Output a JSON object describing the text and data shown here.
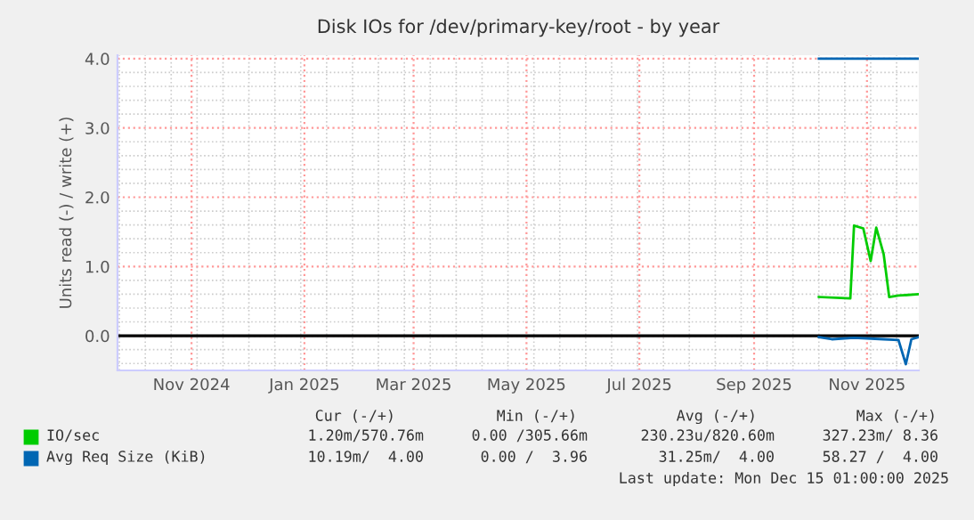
{
  "chart_data": {
    "type": "line",
    "title": "Disk IOs for /dev/primary-key/root - by year",
    "ylabel": "Units read (-) / write (+)",
    "xlim": [
      "2024-09-22",
      "2025-11-29"
    ],
    "xticks": [
      {
        "value": "2024-11-01",
        "label": "Nov 2024"
      },
      {
        "value": "2025-01-01",
        "label": "Jan 2025"
      },
      {
        "value": "2025-03-01",
        "label": "Mar 2025"
      },
      {
        "value": "2025-05-01",
        "label": "May 2025"
      },
      {
        "value": "2025-07-01",
        "label": "Jul 2025"
      },
      {
        "value": "2025-09-01",
        "label": "Sep 2025"
      },
      {
        "value": "2025-11-01",
        "label": "Nov 2025"
      }
    ],
    "ylim": [
      -0.5,
      4.05
    ],
    "yticks": [
      {
        "value": 0,
        "label": "0.0"
      },
      {
        "value": 1,
        "label": "1.0"
      },
      {
        "value": 2,
        "label": "2.0"
      },
      {
        "value": 3,
        "label": "3.0"
      },
      {
        "value": 4,
        "label": "4.0"
      }
    ],
    "grid": true,
    "legend": "bottom",
    "marker": "none",
    "line_style": "solid",
    "ref_lines": [
      {
        "axis": "y",
        "value": 0,
        "color": "#000000"
      }
    ],
    "series": [
      {
        "name": "IO/sec",
        "color": "#00cc00",
        "x": [
          "2025-10-06",
          "2025-10-23",
          "2025-10-25",
          "2025-10-30",
          "2025-11-03",
          "2025-11-06",
          "2025-11-10",
          "2025-11-13",
          "2025-11-18",
          "2025-11-29"
        ],
        "values": [
          0.56,
          0.54,
          1.59,
          1.55,
          1.08,
          1.56,
          1.18,
          0.56,
          0.58,
          0.6
        ]
      },
      {
        "name": "Avg Req Size (KiB)",
        "color": "#0066b3",
        "x": [
          "2025-10-06",
          "2025-11-29"
        ],
        "values": [
          4.0,
          4.0
        ]
      },
      {
        "color": "#0066b3",
        "x": [
          "2025-10-06",
          "2025-10-13",
          "2025-10-25",
          "2025-11-10",
          "2025-11-18",
          "2025-11-22",
          "2025-11-25",
          "2025-11-29"
        ],
        "values": [
          -0.02,
          -0.05,
          -0.03,
          -0.05,
          -0.06,
          -0.41,
          -0.05,
          -0.02
        ]
      }
    ],
    "annotations": [
      "Cur (-/+)",
      "Min (-/+)",
      "Avg (-/+)",
      "Max (-/+)",
      "1.20m/570.76m",
      "0.00 /305.66m",
      "230.23u/820.60m",
      "327.23m/ 8.36",
      "10.19m/  4.00",
      "0.00 /  3.96",
      "31.25m/  4.00",
      "58.27 /  4.00",
      "Last update: Mon Dec 15 01:00:00 2025"
    ]
  }
}
